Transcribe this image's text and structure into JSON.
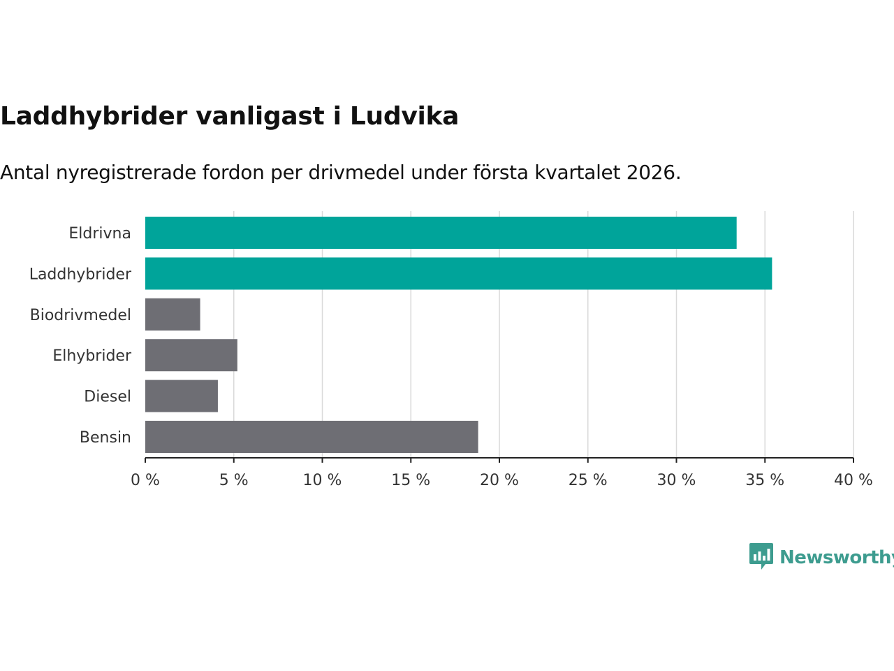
{
  "colors": {
    "highlight": "#00a49a",
    "default": "#6e6e74",
    "grid": "#d9d9d9",
    "axis": "#222222",
    "brand": "#3d9c8f"
  },
  "brand": {
    "name": "Newsworthy",
    "icon": "newsworthy-logo-icon"
  },
  "chart_data": {
    "type": "bar",
    "orientation": "horizontal",
    "title": "Laddhybrider vanligast i Ludvika",
    "subtitle": "Antal nyregistrerade fordon per drivmedel under första kvartalet 2026.",
    "categories": [
      "Eldrivna",
      "Laddhybrider",
      "Biodrivmedel",
      "Elhybrider",
      "Diesel",
      "Bensin"
    ],
    "values": [
      33.4,
      35.4,
      3.1,
      5.2,
      4.1,
      18.8
    ],
    "highlighted": [
      true,
      true,
      false,
      false,
      false,
      false
    ],
    "xlim": [
      0,
      40
    ],
    "xticks": [
      0,
      5,
      10,
      15,
      20,
      25,
      30,
      35,
      40
    ],
    "xtick_labels": [
      "0 %",
      "5 %",
      "10 %",
      "15 %",
      "20 %",
      "25 %",
      "30 %",
      "35 %",
      "40 %"
    ],
    "xlabel": "",
    "ylabel": "",
    "grid": true,
    "unit": "%"
  }
}
